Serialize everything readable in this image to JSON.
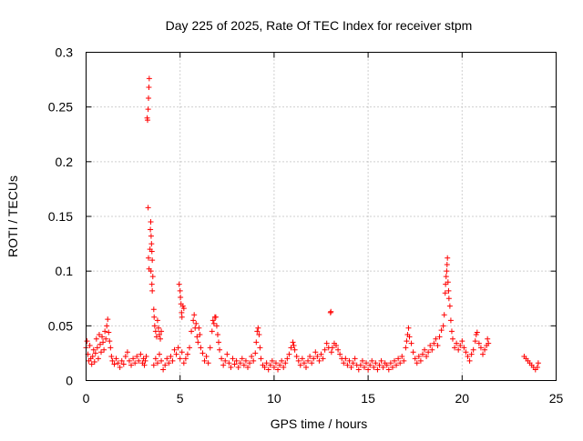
{
  "chart_data": {
    "type": "scatter",
    "title": "Day 225 of 2025, Rate Of TEC Index for receiver stpm",
    "xlabel": "GPS time / hours",
    "ylabel": "ROTI / TECUs",
    "xlim": [
      0,
      25
    ],
    "ylim": [
      0,
      0.3
    ],
    "xticks": [
      0,
      5,
      10,
      15,
      20,
      25
    ],
    "xtick_labels": [
      "0",
      "5",
      "10",
      "15",
      "20",
      "25"
    ],
    "yticks": [
      0,
      0.05,
      0.1,
      0.15,
      0.2,
      0.25,
      0.3
    ],
    "ytick_labels": [
      "0",
      "0.05",
      "0.1",
      "0.15",
      "0.2",
      "0.25",
      "0.3"
    ],
    "grid": true,
    "marker": "+",
    "color": "#ff0000",
    "series": [
      {
        "points": [
          [
            0.0,
            0.03
          ],
          [
            0.05,
            0.036
          ],
          [
            0.1,
            0.024
          ],
          [
            0.15,
            0.018
          ],
          [
            0.2,
            0.032
          ],
          [
            0.25,
            0.02
          ],
          [
            0.3,
            0.015
          ],
          [
            0.35,
            0.022
          ],
          [
            0.4,
            0.028
          ],
          [
            0.45,
            0.017
          ],
          [
            0.5,
            0.025
          ],
          [
            0.55,
            0.038
          ],
          [
            0.6,
            0.03
          ],
          [
            0.65,
            0.02
          ],
          [
            0.7,
            0.042
          ],
          [
            0.75,
            0.033
          ],
          [
            0.8,
            0.026
          ],
          [
            0.85,
            0.04
          ],
          [
            0.9,
            0.035
          ],
          [
            0.95,
            0.028
          ],
          [
            1.0,
            0.045
          ],
          [
            1.05,
            0.038
          ],
          [
            1.1,
            0.05
          ],
          [
            1.15,
            0.056
          ],
          [
            1.2,
            0.044
          ],
          [
            1.25,
            0.036
          ],
          [
            1.3,
            0.03
          ],
          [
            1.35,
            0.022
          ],
          [
            1.4,
            0.018
          ],
          [
            1.5,
            0.015
          ],
          [
            1.6,
            0.02
          ],
          [
            1.7,
            0.016
          ],
          [
            1.8,
            0.012
          ],
          [
            1.9,
            0.018
          ],
          [
            2.0,
            0.015
          ],
          [
            2.1,
            0.022
          ],
          [
            2.2,
            0.026
          ],
          [
            2.3,
            0.018
          ],
          [
            2.4,
            0.014
          ],
          [
            2.5,
            0.02
          ],
          [
            2.6,
            0.016
          ],
          [
            2.7,
            0.022
          ],
          [
            2.8,
            0.018
          ],
          [
            2.9,
            0.024
          ],
          [
            3.0,
            0.016
          ],
          [
            3.05,
            0.02
          ],
          [
            3.1,
            0.014
          ],
          [
            3.15,
            0.018
          ],
          [
            3.2,
            0.022
          ],
          [
            3.25,
            0.24
          ],
          [
            3.27,
            0.238
          ],
          [
            3.3,
            0.248
          ],
          [
            3.32,
            0.258
          ],
          [
            3.34,
            0.268
          ],
          [
            3.36,
            0.276
          ],
          [
            3.3,
            0.158
          ],
          [
            3.32,
            0.112
          ],
          [
            3.35,
            0.102
          ],
          [
            3.4,
            0.12
          ],
          [
            3.42,
            0.138
          ],
          [
            3.44,
            0.145
          ],
          [
            3.46,
            0.132
          ],
          [
            3.48,
            0.125
          ],
          [
            3.5,
            0.118
          ],
          [
            3.52,
            0.11
          ],
          [
            3.45,
            0.1
          ],
          [
            3.5,
            0.088
          ],
          [
            3.52,
            0.082
          ],
          [
            3.55,
            0.095
          ],
          [
            3.6,
            0.065
          ],
          [
            3.62,
            0.058
          ],
          [
            3.65,
            0.05
          ],
          [
            3.7,
            0.045
          ],
          [
            3.75,
            0.04
          ],
          [
            3.8,
            0.055
          ],
          [
            3.85,
            0.048
          ],
          [
            3.9,
            0.042
          ],
          [
            3.95,
            0.038
          ],
          [
            4.0,
            0.045
          ],
          [
            3.6,
            0.014
          ],
          [
            3.7,
            0.02
          ],
          [
            3.8,
            0.016
          ],
          [
            3.9,
            0.024
          ],
          [
            4.0,
            0.018
          ],
          [
            4.1,
            0.01
          ],
          [
            4.2,
            0.014
          ],
          [
            4.3,
            0.02
          ],
          [
            4.4,
            0.016
          ],
          [
            4.5,
            0.022
          ],
          [
            4.6,
            0.018
          ],
          [
            4.7,
            0.028
          ],
          [
            4.8,
            0.024
          ],
          [
            4.9,
            0.03
          ],
          [
            4.95,
            0.088
          ],
          [
            5.0,
            0.082
          ],
          [
            5.02,
            0.076
          ],
          [
            5.05,
            0.07
          ],
          [
            5.08,
            0.062
          ],
          [
            5.1,
            0.058
          ],
          [
            5.15,
            0.068
          ],
          [
            5.2,
            0.066
          ],
          [
            5.0,
            0.02
          ],
          [
            5.1,
            0.026
          ],
          [
            5.2,
            0.016
          ],
          [
            5.3,
            0.02
          ],
          [
            5.4,
            0.024
          ],
          [
            5.5,
            0.03
          ],
          [
            5.6,
            0.045
          ],
          [
            5.7,
            0.055
          ],
          [
            5.75,
            0.06
          ],
          [
            5.8,
            0.048
          ],
          [
            5.85,
            0.052
          ],
          [
            5.9,
            0.04
          ],
          [
            5.95,
            0.035
          ],
          [
            6.0,
            0.048
          ],
          [
            6.05,
            0.042
          ],
          [
            6.1,
            0.03
          ],
          [
            6.2,
            0.025
          ],
          [
            6.3,
            0.018
          ],
          [
            6.4,
            0.022
          ],
          [
            6.5,
            0.016
          ],
          [
            6.6,
            0.03
          ],
          [
            6.7,
            0.045
          ],
          [
            6.75,
            0.055
          ],
          [
            6.8,
            0.052
          ],
          [
            6.85,
            0.058
          ],
          [
            6.9,
            0.058
          ],
          [
            6.95,
            0.05
          ],
          [
            7.0,
            0.042
          ],
          [
            7.05,
            0.035
          ],
          [
            7.1,
            0.028
          ],
          [
            7.2,
            0.02
          ],
          [
            7.3,
            0.014
          ],
          [
            7.4,
            0.018
          ],
          [
            7.5,
            0.024
          ],
          [
            7.6,
            0.016
          ],
          [
            7.7,
            0.012
          ],
          [
            7.8,
            0.02
          ],
          [
            7.9,
            0.015
          ],
          [
            8.0,
            0.018
          ],
          [
            8.1,
            0.012
          ],
          [
            8.2,
            0.016
          ],
          [
            8.3,
            0.02
          ],
          [
            8.4,
            0.014
          ],
          [
            8.5,
            0.018
          ],
          [
            8.6,
            0.012
          ],
          [
            8.7,
            0.016
          ],
          [
            8.8,
            0.022
          ],
          [
            8.9,
            0.018
          ],
          [
            9.0,
            0.025
          ],
          [
            9.05,
            0.035
          ],
          [
            9.1,
            0.045
          ],
          [
            9.15,
            0.048
          ],
          [
            9.2,
            0.042
          ],
          [
            9.25,
            0.03
          ],
          [
            9.3,
            0.02
          ],
          [
            9.4,
            0.014
          ],
          [
            9.5,
            0.012
          ],
          [
            9.6,
            0.016
          ],
          [
            9.7,
            0.01
          ],
          [
            9.8,
            0.014
          ],
          [
            9.9,
            0.018
          ],
          [
            10.0,
            0.012
          ],
          [
            10.1,
            0.016
          ],
          [
            10.2,
            0.01
          ],
          [
            10.3,
            0.014
          ],
          [
            10.4,
            0.018
          ],
          [
            10.5,
            0.012
          ],
          [
            10.6,
            0.016
          ],
          [
            10.7,
            0.02
          ],
          [
            10.8,
            0.024
          ],
          [
            10.9,
            0.03
          ],
          [
            11.0,
            0.035
          ],
          [
            11.05,
            0.032
          ],
          [
            11.1,
            0.028
          ],
          [
            11.2,
            0.022
          ],
          [
            11.3,
            0.018
          ],
          [
            11.4,
            0.014
          ],
          [
            11.5,
            0.02
          ],
          [
            11.6,
            0.016
          ],
          [
            11.7,
            0.012
          ],
          [
            11.8,
            0.018
          ],
          [
            11.9,
            0.022
          ],
          [
            12.0,
            0.016
          ],
          [
            12.1,
            0.02
          ],
          [
            12.2,
            0.026
          ],
          [
            12.3,
            0.022
          ],
          [
            12.4,
            0.018
          ],
          [
            12.5,
            0.024
          ],
          [
            12.6,
            0.02
          ],
          [
            12.7,
            0.028
          ],
          [
            12.8,
            0.034
          ],
          [
            12.9,
            0.03
          ],
          [
            13.0,
            0.062
          ],
          [
            13.02,
            0.063
          ],
          [
            13.05,
            0.026
          ],
          [
            13.1,
            0.03
          ],
          [
            13.2,
            0.034
          ],
          [
            13.3,
            0.032
          ],
          [
            13.4,
            0.028
          ],
          [
            13.5,
            0.024
          ],
          [
            13.6,
            0.02
          ],
          [
            13.7,
            0.016
          ],
          [
            13.8,
            0.02
          ],
          [
            13.9,
            0.014
          ],
          [
            14.0,
            0.018
          ],
          [
            14.1,
            0.012
          ],
          [
            14.2,
            0.016
          ],
          [
            14.3,
            0.02
          ],
          [
            14.4,
            0.014
          ],
          [
            14.5,
            0.01
          ],
          [
            14.6,
            0.014
          ],
          [
            14.7,
            0.018
          ],
          [
            14.8,
            0.012
          ],
          [
            14.9,
            0.016
          ],
          [
            15.0,
            0.01
          ],
          [
            15.1,
            0.014
          ],
          [
            15.2,
            0.018
          ],
          [
            15.3,
            0.012
          ],
          [
            15.4,
            0.016
          ],
          [
            15.5,
            0.01
          ],
          [
            15.6,
            0.014
          ],
          [
            15.7,
            0.018
          ],
          [
            15.8,
            0.012
          ],
          [
            15.9,
            0.016
          ],
          [
            16.0,
            0.014
          ],
          [
            16.1,
            0.01
          ],
          [
            16.2,
            0.016
          ],
          [
            16.3,
            0.012
          ],
          [
            16.4,
            0.018
          ],
          [
            16.5,
            0.014
          ],
          [
            16.6,
            0.02
          ],
          [
            16.7,
            0.016
          ],
          [
            16.8,
            0.022
          ],
          [
            16.9,
            0.018
          ],
          [
            17.0,
            0.03
          ],
          [
            17.05,
            0.036
          ],
          [
            17.1,
            0.042
          ],
          [
            17.15,
            0.048
          ],
          [
            17.2,
            0.04
          ],
          [
            17.3,
            0.034
          ],
          [
            17.4,
            0.026
          ],
          [
            17.5,
            0.02
          ],
          [
            17.6,
            0.016
          ],
          [
            17.7,
            0.022
          ],
          [
            17.8,
            0.018
          ],
          [
            17.9,
            0.024
          ],
          [
            18.0,
            0.028
          ],
          [
            18.1,
            0.022
          ],
          [
            18.2,
            0.026
          ],
          [
            18.3,
            0.032
          ],
          [
            18.4,
            0.028
          ],
          [
            18.5,
            0.034
          ],
          [
            18.6,
            0.038
          ],
          [
            18.7,
            0.032
          ],
          [
            18.8,
            0.04
          ],
          [
            18.9,
            0.046
          ],
          [
            19.0,
            0.05
          ],
          [
            19.05,
            0.06
          ],
          [
            19.1,
            0.08
          ],
          [
            19.12,
            0.088
          ],
          [
            19.15,
            0.095
          ],
          [
            19.18,
            0.1
          ],
          [
            19.2,
            0.106
          ],
          [
            19.22,
            0.112
          ],
          [
            19.25,
            0.09
          ],
          [
            19.28,
            0.082
          ],
          [
            19.3,
            0.075
          ],
          [
            19.35,
            0.068
          ],
          [
            19.4,
            0.055
          ],
          [
            19.45,
            0.045
          ],
          [
            19.5,
            0.038
          ],
          [
            19.6,
            0.03
          ],
          [
            19.7,
            0.034
          ],
          [
            19.8,
            0.028
          ],
          [
            19.9,
            0.032
          ],
          [
            20.0,
            0.036
          ],
          [
            20.1,
            0.03
          ],
          [
            20.2,
            0.026
          ],
          [
            20.3,
            0.022
          ],
          [
            20.4,
            0.018
          ],
          [
            20.5,
            0.024
          ],
          [
            20.6,
            0.028
          ],
          [
            20.7,
            0.036
          ],
          [
            20.75,
            0.042
          ],
          [
            20.8,
            0.044
          ],
          [
            20.9,
            0.034
          ],
          [
            21.0,
            0.03
          ],
          [
            21.1,
            0.024
          ],
          [
            21.2,
            0.028
          ],
          [
            21.3,
            0.032
          ],
          [
            21.35,
            0.038
          ],
          [
            21.4,
            0.034
          ],
          [
            23.3,
            0.022
          ],
          [
            23.4,
            0.02
          ],
          [
            23.5,
            0.018
          ],
          [
            23.6,
            0.016
          ],
          [
            23.7,
            0.014
          ],
          [
            23.8,
            0.012
          ],
          [
            23.9,
            0.01
          ],
          [
            24.0,
            0.012
          ],
          [
            24.05,
            0.016
          ]
        ]
      }
    ]
  }
}
